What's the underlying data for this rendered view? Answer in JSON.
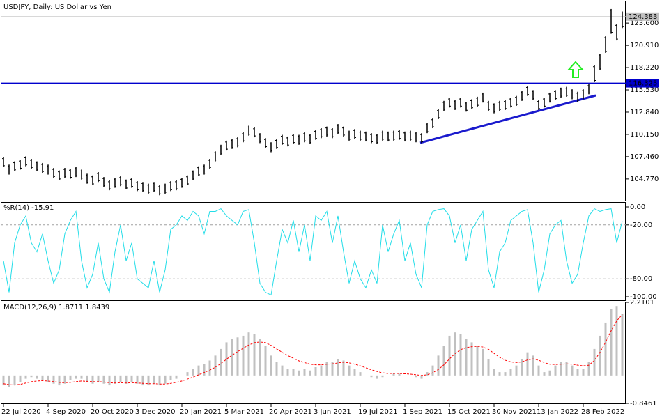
{
  "chart_data": [
    {
      "type": "ohlc",
      "title": "USDJPY, Daily:  US Dollar vs Yen",
      "color": "#000000",
      "categories": [
        "22 Jul 2020",
        null,
        null,
        null,
        null,
        null,
        null,
        null,
        "4 Sep 2020",
        null,
        null,
        null,
        null,
        null,
        null,
        null,
        "20 Oct 2020",
        null,
        null,
        null,
        null,
        null,
        null,
        null,
        "3 Dec 2020",
        null,
        null,
        null,
        null,
        null,
        null,
        null,
        "20 Jan 2021",
        null,
        null,
        null,
        null,
        null,
        null,
        null,
        "5 Mar 2021",
        null,
        null,
        null,
        null,
        null,
        null,
        null,
        "20 Apr 2021",
        null,
        null,
        null,
        null,
        null,
        null,
        null,
        "3 Jun 2021",
        null,
        null,
        null,
        null,
        null,
        null,
        null,
        "19 Jul 2021",
        null,
        null,
        null,
        null,
        null,
        null,
        null,
        "1 Sep 2021",
        null,
        null,
        null,
        null,
        null,
        null,
        null,
        "15 Oct 2021",
        null,
        null,
        null,
        null,
        null,
        null,
        null,
        "30 Nov 2021",
        null,
        null,
        null,
        null,
        null,
        null,
        null,
        "13 Jan 2022",
        null,
        null,
        null,
        null,
        null,
        null,
        null,
        "28 Feb 2022",
        null,
        null,
        null,
        null,
        null,
        null,
        null
      ],
      "high": [
        107.4,
        106.5,
        106.9,
        107.1,
        107.5,
        107.2,
        106.9,
        106.7,
        106.5,
        106.1,
        105.8,
        106.1,
        106.0,
        106.2,
        105.9,
        105.4,
        105.2,
        105.6,
        105.0,
        104.6,
        104.9,
        105.1,
        104.7,
        104.9,
        104.5,
        104.4,
        104.2,
        104.4,
        104.0,
        104.2,
        104.5,
        104.6,
        104.9,
        105.2,
        105.8,
        106.3,
        106.5,
        107.2,
        108.1,
        108.9,
        109.4,
        109.6,
        109.8,
        110.4,
        111.2,
        111.0,
        110.3,
        109.7,
        109.2,
        109.6,
        110.1,
        109.9,
        110.2,
        110.1,
        110.4,
        110.2,
        110.7,
        110.9,
        111.1,
        110.9,
        111.4,
        111.1,
        110.6,
        110.8,
        110.6,
        110.5,
        110.3,
        110.2,
        110.6,
        110.5,
        110.6,
        110.7,
        110.5,
        110.6,
        110.4,
        110.3,
        111.5,
        112.1,
        113.2,
        114.2,
        114.6,
        114.3,
        114.6,
        114.1,
        114.4,
        114.7,
        115.2,
        114.2,
        113.9,
        114.2,
        114.3,
        114.6,
        114.8,
        115.4,
        116.0,
        115.5,
        114.3,
        114.6,
        115.2,
        115.5,
        115.8,
        115.9,
        115.6,
        115.3,
        115.6,
        116.2,
        118.5,
        119.9,
        122.0,
        125.3,
        123.5,
        125.0
      ],
      "low": [
        106.2,
        105.3,
        105.7,
        105.9,
        106.3,
        106.0,
        105.7,
        105.5,
        105.3,
        104.9,
        104.6,
        104.9,
        104.8,
        105.0,
        104.7,
        104.2,
        104.0,
        104.4,
        103.8,
        103.4,
        103.7,
        103.9,
        103.5,
        103.7,
        103.3,
        103.2,
        103.0,
        103.2,
        102.8,
        103.0,
        103.3,
        103.4,
        103.7,
        104.0,
        104.6,
        105.1,
        105.3,
        106.0,
        106.9,
        107.7,
        108.2,
        108.4,
        108.6,
        109.2,
        110.0,
        109.8,
        109.1,
        108.5,
        108.0,
        108.4,
        108.9,
        108.7,
        109.0,
        108.9,
        109.2,
        109.0,
        109.5,
        109.7,
        109.9,
        109.7,
        110.2,
        109.9,
        109.4,
        109.6,
        109.4,
        109.3,
        109.1,
        109.0,
        109.4,
        109.3,
        109.4,
        109.5,
        109.3,
        109.4,
        109.2,
        109.1,
        110.3,
        110.9,
        112.0,
        113.0,
        113.4,
        113.1,
        113.4,
        112.9,
        113.2,
        113.5,
        114.0,
        113.0,
        112.7,
        113.0,
        113.1,
        113.4,
        113.6,
        114.2,
        114.8,
        114.3,
        113.1,
        113.4,
        114.0,
        114.3,
        114.6,
        114.7,
        114.4,
        114.1,
        114.4,
        115.0,
        116.5,
        117.9,
        120.0,
        122.3,
        121.5,
        123.0
      ],
      "ylim": [
        102.15,
        126.22
      ],
      "yticks": [
        {
          "value": 104.77,
          "label": "104.770"
        },
        {
          "value": 107.46,
          "label": "107.460"
        },
        {
          "value": 110.15,
          "label": "110.150"
        },
        {
          "value": 112.84,
          "label": "112.840"
        },
        {
          "value": 115.53,
          "label": "115.530"
        },
        {
          "value": 118.22,
          "label": "118.220"
        },
        {
          "value": 120.91,
          "label": "120.910"
        },
        {
          "value": 123.6,
          "label": "123.600"
        }
      ],
      "hline": {
        "value": 116.325,
        "label": "116.325",
        "color": "#0000cd"
      },
      "last_price": {
        "value": 124.383,
        "label": "124.383",
        "color": "#c0c0c0"
      }
    },
    {
      "type": "line",
      "title": "%R(14) -15.91",
      "color": "#22dde8",
      "values": [
        -60,
        -95,
        -40,
        -20,
        -10,
        -40,
        -50,
        -30,
        -60,
        -85,
        -70,
        -30,
        -15,
        -5,
        -60,
        -90,
        -75,
        -40,
        -80,
        -95,
        -50,
        -20,
        -60,
        -40,
        -80,
        -85,
        -90,
        -60,
        -95,
        -70,
        -25,
        -20,
        -10,
        -15,
        -5,
        -10,
        -30,
        -5,
        -5,
        -2,
        -10,
        -15,
        -20,
        -5,
        -3,
        -40,
        -85,
        -95,
        -98,
        -60,
        -25,
        -40,
        -15,
        -50,
        -20,
        -60,
        -10,
        -15,
        -5,
        -40,
        -10,
        -50,
        -85,
        -60,
        -80,
        -90,
        -70,
        -85,
        -20,
        -50,
        -30,
        -15,
        -60,
        -40,
        -75,
        -90,
        -20,
        -5,
        -3,
        -2,
        -10,
        -40,
        -20,
        -60,
        -25,
        -15,
        -5,
        -70,
        -90,
        -50,
        -40,
        -15,
        -10,
        -5,
        -3,
        -40,
        -95,
        -70,
        -30,
        -20,
        -15,
        -60,
        -85,
        -75,
        -40,
        -10,
        -2,
        -5,
        -3,
        -2,
        -40,
        -15.91
      ],
      "ylim": [
        -103.88,
        4.65
      ],
      "yticks": [
        {
          "value": 0,
          "label": "0.00"
        },
        {
          "value": -20,
          "label": "-20.00"
        },
        {
          "value": -80,
          "label": "-80.00"
        },
        {
          "value": -100,
          "label": "-100.00"
        }
      ],
      "dashed_levels": [
        -20,
        -80
      ]
    },
    {
      "type": "macd",
      "title": "MACD(12,26,9) 1.8711 1.8439",
      "color": "#c0c0c0",
      "signal_color": "#ff0000",
      "values": [
        -0.3,
        -0.35,
        -0.3,
        -0.2,
        -0.1,
        -0.05,
        -0.1,
        -0.15,
        -0.2,
        -0.25,
        -0.3,
        -0.25,
        -0.15,
        -0.1,
        -0.1,
        -0.2,
        -0.25,
        -0.2,
        -0.25,
        -0.3,
        -0.25,
        -0.2,
        -0.25,
        -0.2,
        -0.25,
        -0.3,
        -0.3,
        -0.25,
        -0.3,
        -0.25,
        -0.15,
        -0.1,
        0.0,
        0.1,
        0.2,
        0.3,
        0.35,
        0.45,
        0.6,
        0.8,
        1.0,
        1.1,
        1.15,
        1.2,
        1.3,
        1.25,
        1.1,
        0.9,
        0.6,
        0.4,
        0.3,
        0.2,
        0.2,
        0.15,
        0.2,
        0.15,
        0.25,
        0.3,
        0.4,
        0.4,
        0.5,
        0.45,
        0.3,
        0.2,
        0.1,
        0.0,
        -0.05,
        -0.1,
        -0.05,
        0.0,
        0.05,
        0.05,
        0.0,
        0.0,
        -0.05,
        -0.1,
        0.1,
        0.3,
        0.6,
        0.9,
        1.2,
        1.3,
        1.25,
        1.1,
        1.0,
        0.9,
        0.8,
        0.5,
        0.2,
        0.1,
        0.1,
        0.2,
        0.3,
        0.5,
        0.7,
        0.6,
        0.3,
        0.1,
        0.15,
        0.3,
        0.4,
        0.4,
        0.3,
        0.2,
        0.2,
        0.4,
        0.8,
        1.2,
        1.6,
        2.0,
        2.1,
        1.8711
      ],
      "signal": [
        -0.25,
        -0.28,
        -0.29,
        -0.27,
        -0.23,
        -0.19,
        -0.17,
        -0.16,
        -0.17,
        -0.19,
        -0.21,
        -0.22,
        -0.21,
        -0.19,
        -0.17,
        -0.18,
        -0.19,
        -0.19,
        -0.2,
        -0.22,
        -0.23,
        -0.22,
        -0.23,
        -0.22,
        -0.23,
        -0.24,
        -0.25,
        -0.25,
        -0.26,
        -0.26,
        -0.24,
        -0.21,
        -0.17,
        -0.11,
        -0.05,
        0.02,
        0.09,
        0.16,
        0.25,
        0.36,
        0.49,
        0.61,
        0.72,
        0.82,
        0.92,
        0.99,
        1.01,
        0.99,
        0.91,
        0.8,
        0.7,
        0.6,
        0.52,
        0.44,
        0.39,
        0.34,
        0.32,
        0.32,
        0.34,
        0.35,
        0.38,
        0.4,
        0.38,
        0.34,
        0.29,
        0.23,
        0.17,
        0.12,
        0.08,
        0.06,
        0.06,
        0.06,
        0.05,
        0.04,
        0.02,
        0.0,
        0.02,
        0.08,
        0.18,
        0.32,
        0.5,
        0.66,
        0.78,
        0.84,
        0.87,
        0.88,
        0.86,
        0.79,
        0.67,
        0.55,
        0.46,
        0.41,
        0.39,
        0.41,
        0.47,
        0.5,
        0.46,
        0.39,
        0.34,
        0.33,
        0.34,
        0.35,
        0.34,
        0.31,
        0.29,
        0.31,
        0.45,
        0.7,
        1.0,
        1.35,
        1.65,
        1.8439
      ],
      "ylim": [
        -0.8461,
        2.2101
      ],
      "yticks": [
        -0.8461,
        2.2101
      ]
    }
  ]
}
